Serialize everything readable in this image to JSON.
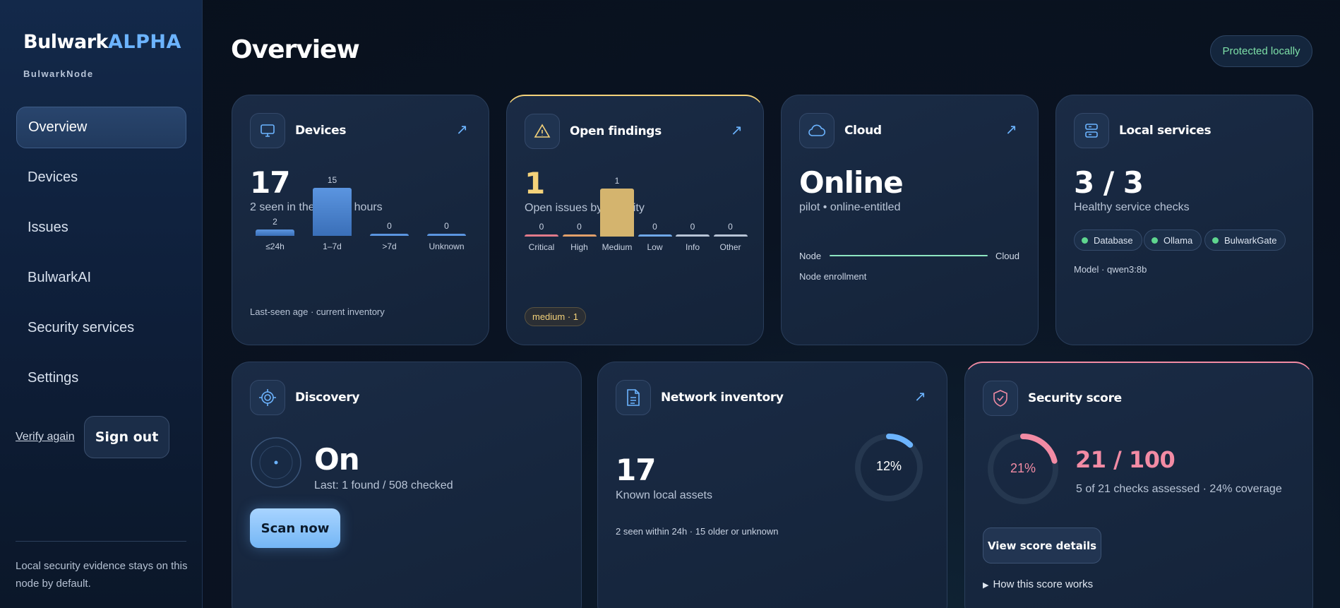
{
  "brand": {
    "name": "Bulwark",
    "badge": "ALPHA",
    "node": "BulwarkNode"
  },
  "sidebar": {
    "items": [
      {
        "label": "Overview",
        "active": true
      },
      {
        "label": "Devices"
      },
      {
        "label": "Issues"
      },
      {
        "label": "BulwarkAI"
      },
      {
        "label": "Security services"
      },
      {
        "label": "Settings"
      }
    ],
    "verify_label": "Verify again",
    "signout_label": "Sign out",
    "footer_note": "Local security evidence stays on this node by default."
  },
  "header": {
    "title": "Overview",
    "status": "Protected locally"
  },
  "cards": {
    "devices": {
      "title": "Devices",
      "value": "17",
      "subtitle": "2 seen in the last 24 hours",
      "footer": "Last-seen age · current inventory",
      "icon": "monitor-icon",
      "bars": [
        {
          "label": "≤24h",
          "value": 2
        },
        {
          "label": "1–7d",
          "value": 15
        },
        {
          "label": ">7d",
          "value": 0
        },
        {
          "label": "Unknown",
          "value": 0
        }
      ]
    },
    "findings": {
      "title": "Open findings",
      "value": "1",
      "subtitle": "Open issues by severity",
      "badge": "medium · 1",
      "icon": "warning-icon",
      "bars": [
        {
          "label": "Critical",
          "value": 0,
          "color": "#e27a8a"
        },
        {
          "label": "High",
          "value": 0,
          "color": "#e2a06a"
        },
        {
          "label": "Medium",
          "value": 1,
          "color": "#d4b46e"
        },
        {
          "label": "Low",
          "value": 0,
          "color": "#6fa8e8"
        },
        {
          "label": "Info",
          "value": 0,
          "color": "#b8c4d6"
        },
        {
          "label": "Other",
          "value": 0,
          "color": "#b8c4d6"
        }
      ]
    },
    "cloud": {
      "title": "Cloud",
      "value": "Online",
      "subtitle": "pilot • online-entitled",
      "link_left": "Node",
      "link_right": "Cloud",
      "footer": "Node enrollment",
      "icon": "cloud-icon"
    },
    "services": {
      "title": "Local services",
      "value": "3 / 3",
      "subtitle": "Healthy service checks",
      "chips": [
        "Database",
        "Ollama",
        "BulwarkGate"
      ],
      "model": "Model · qwen3:8b",
      "icon": "server-icon"
    },
    "discovery": {
      "title": "Discovery",
      "value": "On",
      "subtitle": "Last: 1 found / 508 checked",
      "button": "Scan now",
      "icon": "target-icon"
    },
    "network": {
      "title": "Network inventory",
      "value": "17",
      "subtitle": "Known local assets",
      "footer": "2 seen within 24h · 15 older or unknown",
      "percent": 12,
      "percent_label": "12%",
      "icon": "document-icon"
    },
    "score": {
      "title": "Security score",
      "value": "21 / 100",
      "subtitle": "5 of 21 checks assessed · 24% coverage",
      "percent": 21,
      "percent_label": "21%",
      "button": "View score details",
      "howworks": "How this score works",
      "icon": "shield-check-icon"
    }
  },
  "colors": {
    "accent": "#6cb4ff",
    "score": "#f28ba4",
    "warning": "#f4d27a",
    "ok": "#5fd68f"
  }
}
